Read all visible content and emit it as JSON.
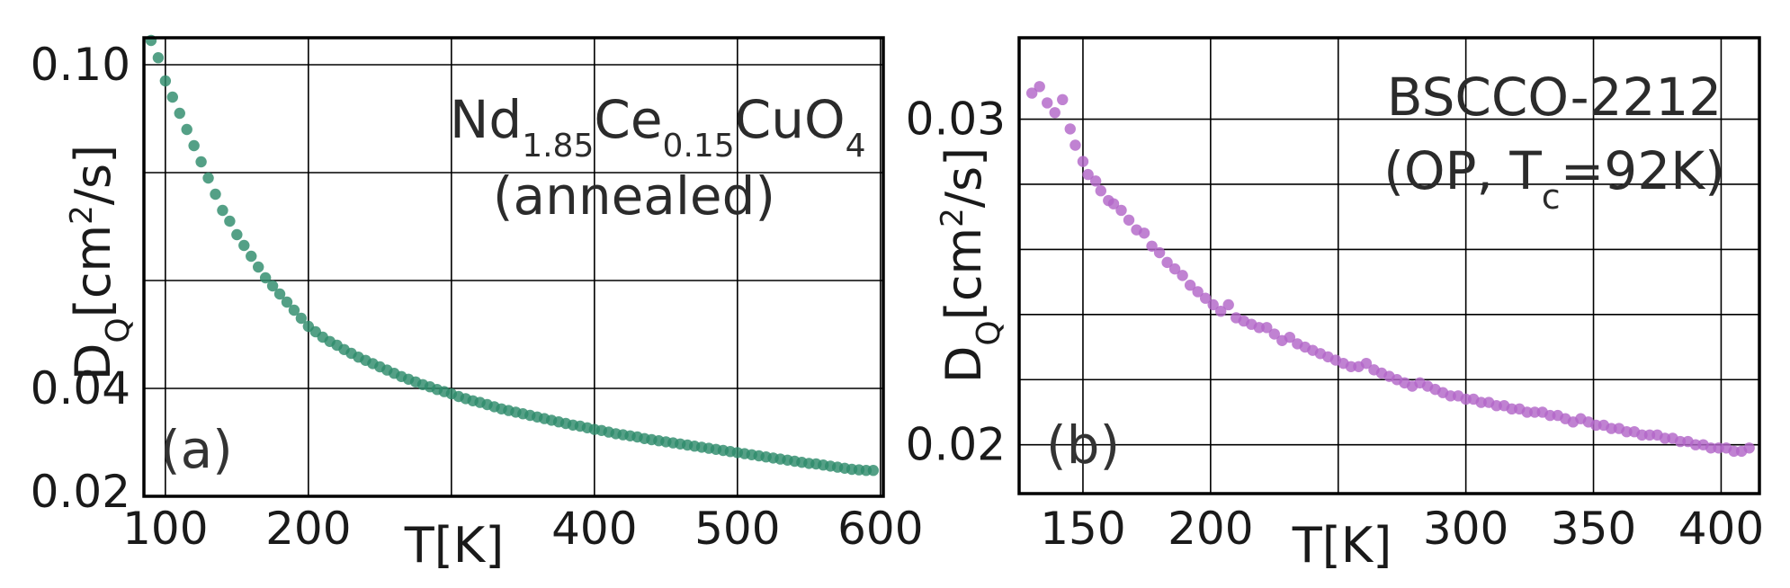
{
  "chart_data": [
    {
      "type": "scatter",
      "panel_label": "(a)",
      "annotation": {
        "material_parts": [
          {
            "text": "Nd",
            "sub": false
          },
          {
            "text": "1.85",
            "sub": true
          },
          {
            "text": "Ce",
            "sub": false
          },
          {
            "text": "0.15",
            "sub": true
          },
          {
            "text": "CuO",
            "sub": false
          },
          {
            "text": "4",
            "sub": true
          }
        ],
        "condition": "(annealed)"
      },
      "xlabel": "T[K]",
      "ylabel_parts": [
        {
          "text": "D",
          "mode": "normal"
        },
        {
          "text": "Q",
          "mode": "sub"
        },
        {
          "text": "[cm",
          "mode": "normal"
        },
        {
          "text": "2",
          "mode": "sup"
        },
        {
          "text": "/s]",
          "mode": "normal"
        }
      ],
      "xlim": [
        85,
        602
      ],
      "ylim": [
        0.02,
        0.105
      ],
      "x_ticks": [
        100,
        200,
        300,
        400,
        500,
        600
      ],
      "x_tick_labels": [
        "100",
        "200",
        "",
        "400",
        "500",
        "600"
      ],
      "y_grid": [
        0.02,
        0.04,
        0.06,
        0.08,
        0.1
      ],
      "y_ticks": [
        0.02,
        0.04,
        0.1
      ],
      "y_tick_labels": [
        "0.02",
        "0.04",
        "0.10"
      ],
      "color": "#2e8b6b",
      "x": [
        90,
        95,
        100,
        105,
        110,
        115,
        120,
        125,
        130,
        135,
        140,
        145,
        150,
        155,
        160,
        165,
        170,
        175,
        180,
        185,
        190,
        195,
        200,
        205,
        210,
        215,
        220,
        225,
        230,
        235,
        240,
        245,
        250,
        255,
        260,
        265,
        270,
        275,
        280,
        285,
        290,
        295,
        300,
        305,
        310,
        315,
        320,
        325,
        330,
        335,
        340,
        345,
        350,
        355,
        360,
        365,
        370,
        375,
        380,
        385,
        390,
        395,
        400,
        405,
        410,
        415,
        420,
        425,
        430,
        435,
        440,
        445,
        450,
        455,
        460,
        465,
        470,
        475,
        480,
        485,
        490,
        495,
        500,
        505,
        510,
        515,
        520,
        525,
        530,
        535,
        540,
        545,
        550,
        555,
        560,
        565,
        570,
        575,
        580,
        585,
        590,
        595
      ],
      "y": [
        0.1045,
        0.1013,
        0.097,
        0.094,
        0.091,
        0.088,
        0.085,
        0.082,
        0.079,
        0.076,
        0.073,
        0.071,
        0.0685,
        0.0665,
        0.0645,
        0.0625,
        0.0605,
        0.059,
        0.0575,
        0.056,
        0.0545,
        0.053,
        0.0515,
        0.0505,
        0.0495,
        0.0487,
        0.048,
        0.0472,
        0.0465,
        0.0458,
        0.0452,
        0.0446,
        0.044,
        0.0434,
        0.0428,
        0.0422,
        0.0417,
        0.0412,
        0.0407,
        0.0403,
        0.0398,
        0.0394,
        0.039,
        0.0385,
        0.0381,
        0.0377,
        0.0374,
        0.037,
        0.0366,
        0.0362,
        0.0359,
        0.0356,
        0.0353,
        0.035,
        0.0347,
        0.0344,
        0.0341,
        0.0338,
        0.0335,
        0.0332,
        0.033,
        0.0327,
        0.0324,
        0.0322,
        0.0319,
        0.0316,
        0.0314,
        0.0312,
        0.031,
        0.0307,
        0.0305,
        0.0303,
        0.0301,
        0.0299,
        0.0297,
        0.0295,
        0.0293,
        0.0291,
        0.0289,
        0.0287,
        0.0285,
        0.0283,
        0.0281,
        0.0279,
        0.0277,
        0.0275,
        0.0273,
        0.0271,
        0.0269,
        0.0267,
        0.0265,
        0.0263,
        0.0261,
        0.026,
        0.0258,
        0.0256,
        0.0254,
        0.0252,
        0.025,
        0.0249,
        0.0248,
        0.0248
      ]
    },
    {
      "type": "scatter",
      "panel_label": "(b)",
      "annotation": {
        "material_parts": [
          {
            "text": "BSCCO-2212",
            "sub": false
          }
        ],
        "condition_parts": [
          {
            "text": "(OP, T",
            "sub": false
          },
          {
            "text": "c",
            "sub": true
          },
          {
            "text": "=92K)",
            "sub": false
          }
        ]
      },
      "xlabel": "T[K]",
      "ylabel_parts": [
        {
          "text": "D",
          "mode": "normal"
        },
        {
          "text": "Q",
          "mode": "sub"
        },
        {
          "text": "[cm",
          "mode": "normal"
        },
        {
          "text": "2",
          "mode": "sup"
        },
        {
          "text": "/s]",
          "mode": "normal"
        }
      ],
      "xlim": [
        125,
        415
      ],
      "ylim": [
        0.0185,
        0.0325
      ],
      "x_ticks": [
        150,
        200,
        250,
        300,
        350,
        400
      ],
      "x_tick_labels": [
        "150",
        "200",
        "",
        "300",
        "350",
        "400"
      ],
      "y_grid": [
        0.02,
        0.022,
        0.024,
        0.026,
        0.028,
        0.03
      ],
      "y_ticks": [
        0.02,
        0.03
      ],
      "y_tick_labels": [
        "0.02",
        "0.03"
      ],
      "color": "#b266c8",
      "x": [
        130,
        133,
        136,
        139,
        142,
        145,
        147,
        150,
        152,
        155,
        157,
        160,
        162,
        165,
        168,
        171,
        174,
        177,
        180,
        183,
        186,
        189,
        192,
        195,
        198,
        201,
        204,
        207,
        210,
        213,
        216,
        219,
        222,
        225,
        228,
        231,
        234,
        237,
        240,
        243,
        246,
        249,
        252,
        255,
        258,
        261,
        264,
        267,
        270,
        273,
        276,
        279,
        282,
        285,
        288,
        291,
        294,
        297,
        300,
        303,
        306,
        309,
        312,
        315,
        318,
        321,
        324,
        327,
        330,
        333,
        336,
        339,
        342,
        345,
        348,
        351,
        354,
        357,
        360,
        363,
        366,
        369,
        372,
        375,
        378,
        381,
        384,
        387,
        390,
        393,
        396,
        399,
        402,
        405,
        408,
        411
      ],
      "y": [
        0.0308,
        0.031,
        0.0305,
        0.0302,
        0.0306,
        0.0297,
        0.0292,
        0.0287,
        0.0283,
        0.0281,
        0.0278,
        0.0275,
        0.0274,
        0.0272,
        0.0269,
        0.0266,
        0.0265,
        0.0261,
        0.0259,
        0.0256,
        0.0254,
        0.0252,
        0.0249,
        0.0247,
        0.0245,
        0.0243,
        0.0241,
        0.0243,
        0.0239,
        0.0238,
        0.0237,
        0.0236,
        0.0236,
        0.0234,
        0.0232,
        0.0233,
        0.0231,
        0.023,
        0.0229,
        0.0228,
        0.0227,
        0.0226,
        0.0225,
        0.0224,
        0.0224,
        0.0225,
        0.0223,
        0.0222,
        0.0221,
        0.022,
        0.0219,
        0.0218,
        0.0219,
        0.0218,
        0.0217,
        0.0216,
        0.0215,
        0.0215,
        0.0214,
        0.0214,
        0.0213,
        0.0213,
        0.0212,
        0.0212,
        0.0211,
        0.0211,
        0.021,
        0.021,
        0.021,
        0.0209,
        0.0209,
        0.0208,
        0.0207,
        0.0208,
        0.0207,
        0.0206,
        0.0206,
        0.0205,
        0.0205,
        0.0204,
        0.0204,
        0.0203,
        0.0203,
        0.0203,
        0.0202,
        0.0202,
        0.0201,
        0.0201,
        0.02,
        0.02,
        0.0199,
        0.0199,
        0.0199,
        0.0198,
        0.0198,
        0.0199
      ]
    }
  ]
}
